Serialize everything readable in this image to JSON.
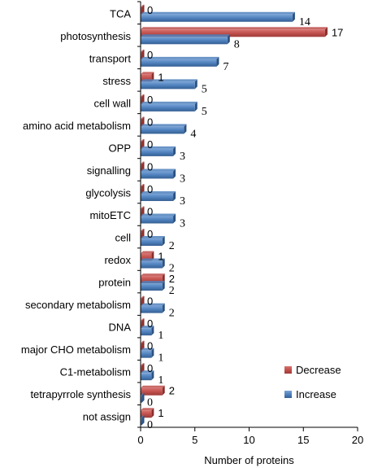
{
  "chart_data": {
    "type": "bar",
    "orientation": "horizontal",
    "categories": [
      "TCA",
      "photosynthesis",
      "transport",
      "stress",
      "cell wall",
      "amino acid metabolism",
      "OPP",
      "signalling",
      "glycolysis",
      "mitoETC",
      "cell",
      "redox",
      "protein",
      "secondary metabolism",
      "DNA",
      "major CHO metabolism",
      "C1-metabolism",
      "tetrapyrrole synthesis",
      "not assign"
    ],
    "series": [
      {
        "name": "Decrease",
        "color": "#c0504d",
        "values": [
          0,
          17,
          0,
          1,
          0,
          0,
          0,
          0,
          0,
          0,
          0,
          1,
          2,
          0,
          0,
          0,
          0,
          2,
          1
        ]
      },
      {
        "name": "Increase",
        "color": "#4f81bd",
        "values": [
          14,
          8,
          7,
          5,
          5,
          4,
          3,
          3,
          3,
          3,
          2,
          2,
          2,
          2,
          1,
          1,
          1,
          0,
          0
        ]
      }
    ],
    "xlabel": "Number of proteins",
    "xlim": [
      0,
      20
    ],
    "xticks": [
      "0",
      "5",
      "10",
      "15",
      "20"
    ],
    "legend_position": "bottom-right",
    "grid": false
  }
}
